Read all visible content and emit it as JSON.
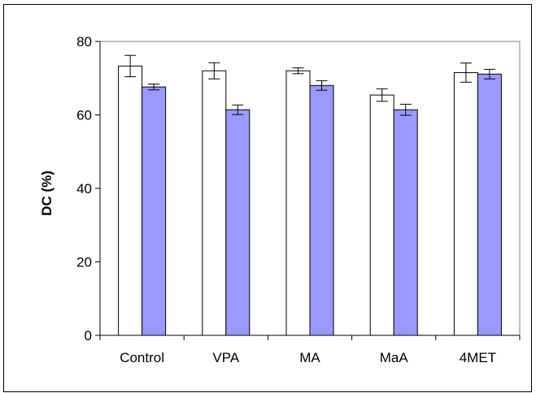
{
  "chart_data": {
    "type": "bar",
    "title": "",
    "xlabel": "",
    "ylabel": "DC (%)",
    "ylim": [
      0,
      80
    ],
    "yticks": [
      0,
      20,
      40,
      60,
      80
    ],
    "grid": false,
    "legend": "none",
    "categories": [
      "Control",
      "VPA",
      "MA",
      "MaA",
      "4MET"
    ],
    "series": [
      {
        "color": "#ffffff",
        "values": [
          73.3,
          72.0,
          72.0,
          65.4,
          71.5
        ],
        "errors": [
          2.9,
          2.2,
          0.8,
          1.7,
          2.6
        ]
      },
      {
        "color": "#9999ff",
        "values": [
          67.6,
          61.4,
          68.0,
          61.4,
          71.1
        ],
        "errors": [
          0.8,
          1.3,
          1.3,
          1.5,
          1.3
        ]
      }
    ]
  }
}
